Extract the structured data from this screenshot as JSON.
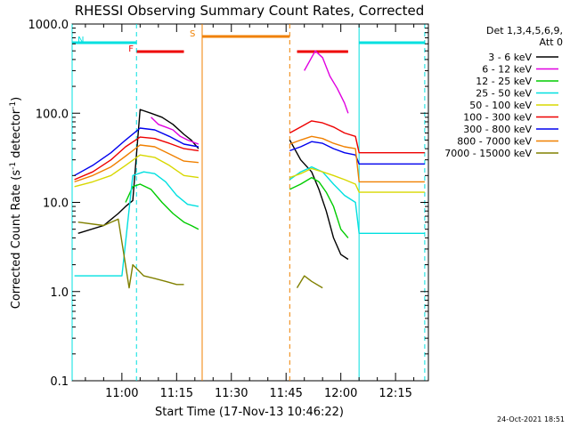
{
  "chart_data": {
    "type": "line",
    "title": "RHESSI Observing Summary Count Rates, Corrected",
    "xlabel": "Start Time (17-Nov-13 10:46:22)",
    "ylabel": "Corrected Count Rate (s⁻¹ detector⁻¹)",
    "ylabel_parts": [
      "Corrected Count Rate (s",
      "-1",
      " detector",
      "-1",
      ")"
    ],
    "y_scale": "log",
    "ylim": [
      0.1,
      1000.0
    ],
    "xlim": [
      "10:46:22",
      "12:24:00"
    ],
    "y_ticks": [
      "1000.0",
      "100.0",
      "10.0",
      "1.0",
      "0.1"
    ],
    "x_ticks": [
      "11:00",
      "11:15",
      "11:30",
      "11:45",
      "12:00",
      "12:15"
    ],
    "legend": {
      "header": [
        "Det 1,3,4,5,6,9,",
        "Att 0"
      ],
      "placement": "right, outside plot",
      "entries": [
        {
          "label": "3 - 6 keV",
          "color": "#000000"
        },
        {
          "label": "6 - 12 keV",
          "color": "#e000e0"
        },
        {
          "label": "12 - 25 keV",
          "color": "#00cc00"
        },
        {
          "label": "25 - 50 keV",
          "color": "#00e0e0"
        },
        {
          "label": "50 - 100 keV",
          "color": "#d8d800"
        },
        {
          "label": "100 - 300 keV",
          "color": "#ee0000"
        },
        {
          "label": "300 - 800 keV",
          "color": "#0000ee"
        },
        {
          "label": "800 - 7000 keV",
          "color": "#f08000"
        },
        {
          "label": "7000 - 15000 keV",
          "color": "#808000"
        }
      ]
    },
    "flags": [
      {
        "label": "N",
        "color": "#00e0e0",
        "start": "10:46:22",
        "end": "11:04:00"
      },
      {
        "label": "",
        "color": "#00e0e0",
        "start": "12:05:00",
        "end": "12:23:00"
      },
      {
        "label": "F",
        "color": "#ee0000",
        "start": "11:04:00",
        "end": "11:17:00"
      },
      {
        "label": "",
        "color": "#ee0000",
        "start": "11:48:00",
        "end": "12:02:00"
      },
      {
        "label": "S",
        "color": "#f08000",
        "start": "11:22:00",
        "end": "11:46:00"
      }
    ],
    "vertical_lines": [
      {
        "time": "10:46:22",
        "color": "#00e0e0",
        "style": "solid"
      },
      {
        "time": "11:04:00",
        "color": "#00e0e0",
        "style": "dashed"
      },
      {
        "time": "11:22:00",
        "color": "#f08000",
        "style": "solid"
      },
      {
        "time": "11:46:00",
        "color": "#f08000",
        "style": "dashed"
      },
      {
        "time": "12:05:00",
        "color": "#00e0e0",
        "style": "solid"
      },
      {
        "time": "12:23:00",
        "color": "#00e0e0",
        "style": "dashed"
      }
    ],
    "series": [
      {
        "name": "3 - 6 keV",
        "color": "#000000",
        "segments": [
          [
            [
              "10:48",
              4.5
            ],
            [
              "10:55",
              5.5
            ],
            [
              "10:59",
              7.5
            ],
            [
              "11:01",
              9
            ],
            [
              "11:03",
              10.5
            ],
            [
              "11:05",
              110
            ],
            [
              "11:08",
              100
            ],
            [
              "11:11",
              90
            ],
            [
              "11:14",
              75
            ],
            [
              "11:17",
              58
            ],
            [
              "11:19",
              50
            ],
            [
              "11:21",
              40
            ]
          ],
          [
            [
              "11:46",
              50
            ],
            [
              "11:49",
              30
            ],
            [
              "11:52",
              22
            ],
            [
              "11:54",
              14
            ],
            [
              "11:56",
              8
            ],
            [
              "11:58",
              4
            ],
            [
              "12:00",
              2.6
            ],
            [
              "12:02",
              2.3
            ]
          ]
        ]
      },
      {
        "name": "6 - 12 keV",
        "color": "#e000e0",
        "segments": [
          [
            [
              "11:08",
              90
            ],
            [
              "11:10",
              75
            ],
            [
              "11:12",
              70
            ],
            [
              "11:14",
              65
            ],
            [
              "11:16",
              55
            ],
            [
              "11:18",
              50
            ],
            [
              "11:21",
              45
            ]
          ],
          [
            [
              "11:50",
              300
            ],
            [
              "11:53",
              500
            ],
            [
              "11:55",
              420
            ],
            [
              "11:57",
              260
            ],
            [
              "11:59",
              190
            ],
            [
              "12:01",
              130
            ],
            [
              "12:02",
              100
            ]
          ]
        ]
      },
      {
        "name": "12 - 25 keV",
        "color": "#00cc00",
        "segments": [
          [
            [
              "11:01",
              10
            ],
            [
              "11:03",
              15
            ],
            [
              "11:05",
              16
            ],
            [
              "11:08",
              14
            ],
            [
              "11:11",
              10
            ],
            [
              "11:14",
              7.5
            ],
            [
              "11:17",
              6
            ],
            [
              "11:19",
              5.5
            ],
            [
              "11:21",
              5
            ]
          ],
          [
            [
              "11:46",
              14
            ],
            [
              "11:49",
              16
            ],
            [
              "11:52",
              19
            ],
            [
              "11:54",
              17
            ],
            [
              "11:56",
              13
            ],
            [
              "11:58",
              9
            ],
            [
              "12:00",
              5
            ],
            [
              "12:02",
              4
            ]
          ]
        ]
      },
      {
        "name": "25 - 50 keV",
        "color": "#00e0e0",
        "segments": [
          [
            [
              "10:47",
              1.5
            ],
            [
              "11:00",
              1.5
            ],
            [
              "11:03",
              20
            ],
            [
              "11:06",
              22
            ],
            [
              "11:09",
              21
            ],
            [
              "11:12",
              17
            ],
            [
              "11:15",
              12
            ],
            [
              "11:18",
              9.5
            ],
            [
              "11:21",
              9
            ]
          ],
          [
            [
              "11:46",
              18
            ],
            [
              "11:49",
              22
            ],
            [
              "11:52",
              25
            ],
            [
              "11:55",
              22
            ],
            [
              "11:58",
              16
            ],
            [
              "12:01",
              12
            ],
            [
              "12:04",
              10
            ],
            [
              "12:05",
              4.5
            ],
            [
              "12:23",
              4.5
            ]
          ]
        ]
      },
      {
        "name": "50 - 100 keV",
        "color": "#d8d800",
        "segments": [
          [
            [
              "10:47",
              15
            ],
            [
              "10:52",
              17
            ],
            [
              "10:57",
              20
            ],
            [
              "11:01",
              26
            ],
            [
              "11:05",
              34
            ],
            [
              "11:09",
              32
            ],
            [
              "11:13",
              26
            ],
            [
              "11:17",
              20
            ],
            [
              "11:21",
              19
            ]
          ],
          [
            [
              "11:46",
              19
            ],
            [
              "11:49",
              21
            ],
            [
              "11:52",
              24
            ],
            [
              "11:55",
              22
            ],
            [
              "11:58",
              20
            ],
            [
              "12:01",
              18
            ],
            [
              "12:04",
              16
            ],
            [
              "12:05",
              13
            ],
            [
              "12:23",
              13
            ]
          ]
        ]
      },
      {
        "name": "100 - 300 keV",
        "color": "#ee0000",
        "segments": [
          [
            [
              "10:47",
              18
            ],
            [
              "10:52",
              22
            ],
            [
              "10:57",
              30
            ],
            [
              "11:01",
              42
            ],
            [
              "11:05",
              54
            ],
            [
              "11:09",
              52
            ],
            [
              "11:13",
              46
            ],
            [
              "11:17",
              40
            ],
            [
              "11:21",
              38
            ]
          ],
          [
            [
              "11:46",
              60
            ],
            [
              "11:49",
              70
            ],
            [
              "11:52",
              82
            ],
            [
              "11:55",
              78
            ],
            [
              "11:58",
              70
            ],
            [
              "12:01",
              60
            ],
            [
              "12:04",
              55
            ],
            [
              "12:05",
              36
            ],
            [
              "12:23",
              36
            ]
          ]
        ]
      },
      {
        "name": "300 - 800 keV",
        "color": "#0000ee",
        "segments": [
          [
            [
              "10:47",
              20
            ],
            [
              "10:52",
              26
            ],
            [
              "10:57",
              36
            ],
            [
              "11:01",
              50
            ],
            [
              "11:05",
              68
            ],
            [
              "11:09",
              65
            ],
            [
              "11:13",
              55
            ],
            [
              "11:17",
              45
            ],
            [
              "11:21",
              42
            ]
          ],
          [
            [
              "11:46",
              38
            ],
            [
              "11:49",
              42
            ],
            [
              "11:52",
              48
            ],
            [
              "11:55",
              46
            ],
            [
              "11:58",
              40
            ],
            [
              "12:01",
              36
            ],
            [
              "12:04",
              34
            ],
            [
              "12:05",
              27
            ],
            [
              "12:23",
              27
            ]
          ]
        ]
      },
      {
        "name": "800 - 7000 keV",
        "color": "#f08000",
        "segments": [
          [
            [
              "10:47",
              17
            ],
            [
              "10:52",
              20
            ],
            [
              "10:57",
              25
            ],
            [
              "11:01",
              33
            ],
            [
              "11:05",
              44
            ],
            [
              "11:09",
              42
            ],
            [
              "11:13",
              35
            ],
            [
              "11:17",
              29
            ],
            [
              "11:21",
              28
            ]
          ],
          [
            [
              "11:46",
              45
            ],
            [
              "11:49",
              50
            ],
            [
              "11:52",
              55
            ],
            [
              "11:55",
              52
            ],
            [
              "11:58",
              46
            ],
            [
              "12:01",
              42
            ],
            [
              "12:04",
              40
            ],
            [
              "12:05",
              17
            ],
            [
              "12:23",
              17
            ]
          ]
        ]
      },
      {
        "name": "7000 - 15000 keV",
        "color": "#808000",
        "segments": [
          [
            [
              "10:48",
              6
            ],
            [
              "10:55",
              5.5
            ],
            [
              "10:59",
              6.5
            ],
            [
              "11:02",
              1.1
            ],
            [
              "11:03",
              2
            ],
            [
              "11:06",
              1.5
            ],
            [
              "11:09",
              1.4
            ],
            [
              "11:12",
              1.3
            ],
            [
              "11:15",
              1.2
            ],
            [
              "11:17",
              1.2
            ]
          ],
          [
            [
              "11:48",
              1.1
            ],
            [
              "11:50",
              1.5
            ],
            [
              "11:52",
              1.3
            ],
            [
              "11:55",
              1.1
            ]
          ]
        ]
      }
    ]
  },
  "footer": {
    "date": "24-Oct-2021 18:51"
  }
}
